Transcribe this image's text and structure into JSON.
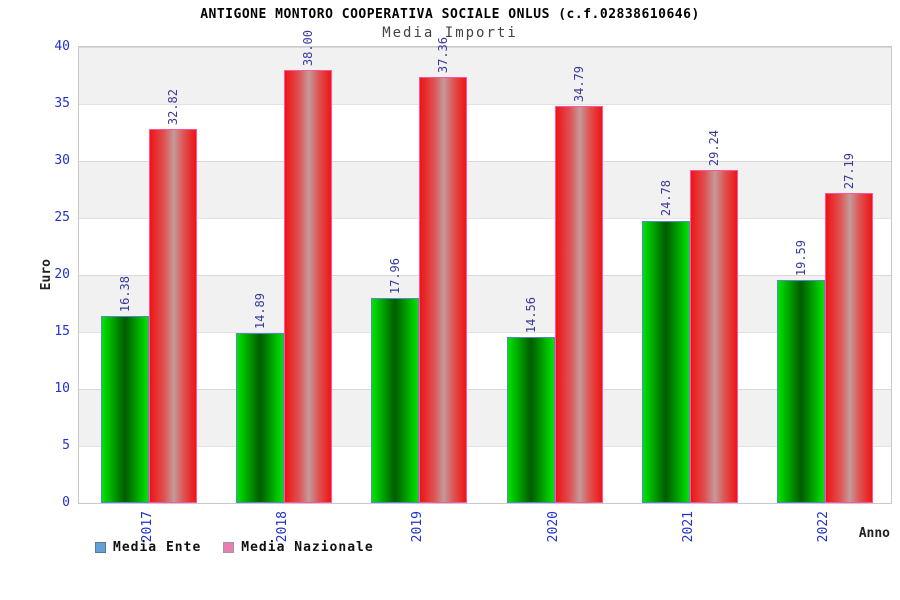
{
  "chart_data": {
    "type": "bar",
    "title": "ANTIGONE MONTORO COOPERATIVA SOCIALE ONLUS (c.f.02838610646)",
    "subtitle": "Media Importi",
    "categories": [
      "2017",
      "2018",
      "2019",
      "2020",
      "2021",
      "2022"
    ],
    "series": [
      {
        "name": "Media Ente",
        "values": [
          16.38,
          14.89,
          17.96,
          14.56,
          24.78,
          19.59
        ]
      },
      {
        "name": "Media Nazionale",
        "values": [
          32.82,
          38.0,
          37.36,
          34.79,
          29.24,
          27.19
        ]
      }
    ],
    "xlabel": "Anno",
    "ylabel": "Euro",
    "ylim": [
      0,
      40
    ],
    "ytick_step": 5,
    "grid": "horizontal-alternating-bands",
    "legend_position": "bottom-left",
    "value_label_format": "2-decimals",
    "value_label_rotation_deg": 90,
    "x_tick_rotation_deg": 90
  },
  "colors": {
    "axis_label_blue": "#2233cc",
    "value_label_blue": "#3a3a99",
    "title_color": "#000000",
    "subtitle_color": "#444444",
    "band_gray": "#f1f1f1",
    "plot_border": "#c9c9c9",
    "bar_green_light": "#00e400",
    "bar_green_dark": "#005c00",
    "bar_green_border": "#5588cc",
    "bar_red_edge": "#ee1515",
    "bar_red_center": "#c49a9a",
    "bar_red_border": "#ff55a0",
    "legend_ente_swatch": "#64a0d8",
    "legend_nazionale_swatch": "#e87fb0"
  }
}
